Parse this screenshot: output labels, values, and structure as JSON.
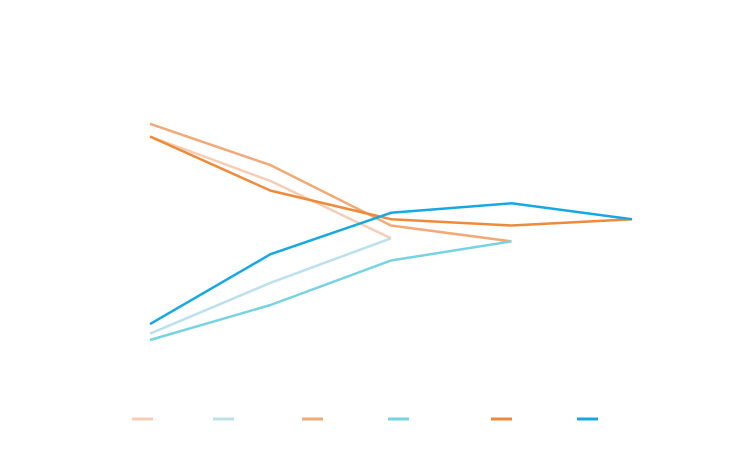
{
  "chart_data": {
    "type": "line",
    "x": [
      1,
      2,
      3,
      4,
      5
    ],
    "ylim": [
      0,
      100
    ],
    "grid": false,
    "legend_placement": "bottom",
    "series": [
      {
        "color": "#f5cdb4",
        "values": [
          75,
          61,
          43,
          null,
          null
        ]
      },
      {
        "color": "#bde0ee",
        "values": [
          13,
          29,
          43,
          null,
          null
        ]
      },
      {
        "color": "#f2a976",
        "values": [
          79,
          66,
          47,
          42,
          null
        ]
      },
      {
        "color": "#76d3e2",
        "values": [
          11,
          22,
          36,
          42,
          null
        ]
      },
      {
        "color": "#ee8a3a",
        "values": [
          75,
          58,
          49,
          47,
          49
        ]
      },
      {
        "color": "#16a9e1",
        "values": [
          16,
          38,
          51,
          54,
          49
        ]
      }
    ]
  }
}
